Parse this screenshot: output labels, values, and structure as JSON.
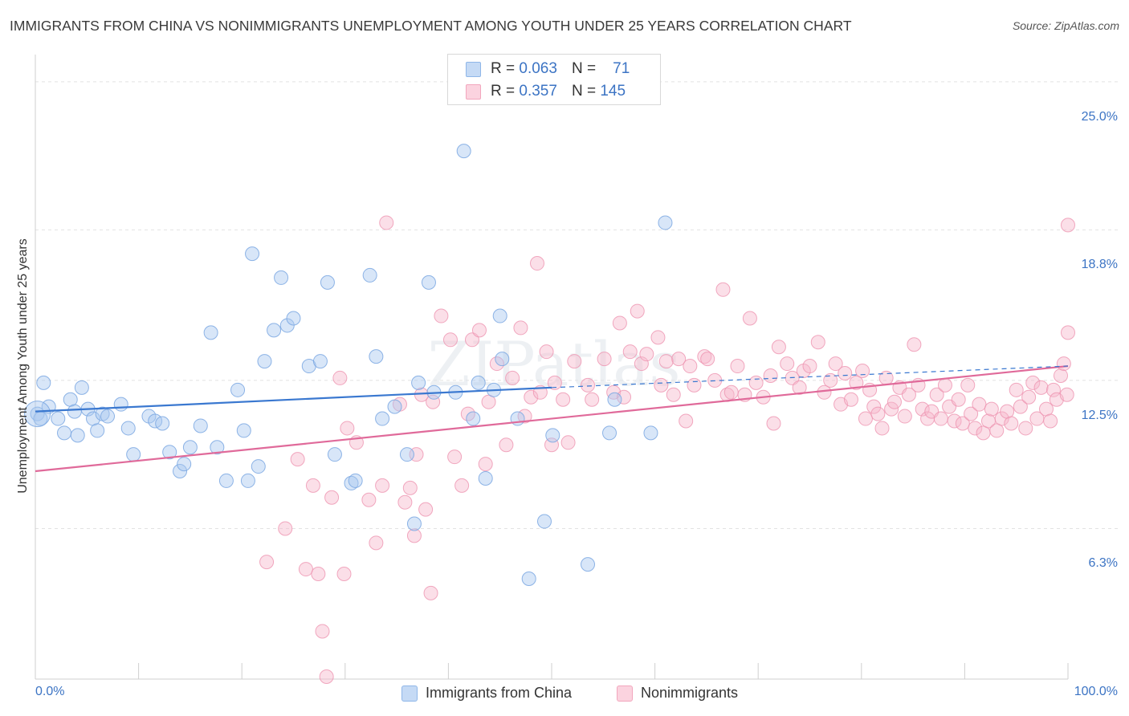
{
  "header": {
    "title": "IMMIGRANTS FROM CHINA VS NONIMMIGRANTS UNEMPLOYMENT AMONG YOUTH UNDER 25 YEARS CORRELATION CHART",
    "source": "Source: ZipAtlas.com"
  },
  "watermark": "ZIPatlas",
  "legend_top": {
    "rows": [
      {
        "r_label": "R =",
        "r_value": "0.063",
        "n_label": "N =",
        "n_value": "71"
      },
      {
        "r_label": "R =",
        "r_value": "0.357",
        "n_label": "N =",
        "n_value": "145"
      }
    ]
  },
  "chart_data": {
    "type": "scatter",
    "title": "IMMIGRANTS FROM CHINA VS NONIMMIGRANTS UNEMPLOYMENT AMONG YOUTH UNDER 25 YEARS CORRELATION CHART",
    "xlabel": "",
    "ylabel": "Unemployment Among Youth under 25 years",
    "xlim": [
      0,
      100
    ],
    "ylim": [
      0,
      25.8
    ],
    "x_tick_labels": [
      "0.0%",
      "100.0%"
    ],
    "y_ticks": [
      6.3,
      12.5,
      18.8,
      25.0
    ],
    "y_tick_labels": [
      "6.3%",
      "12.5%",
      "18.8%",
      "25.0%"
    ],
    "grid": true,
    "legend_position": "top-center",
    "series": [
      {
        "name": "Immigrants from China",
        "color": "#8fb6e8",
        "trend": {
          "x0": 0,
          "y0": 11.2,
          "x1": 50,
          "y1": 12.2,
          "dashed_to": 100,
          "y_end": 13.1,
          "color": "#3a78d0"
        },
        "points": [
          [
            0.2,
            11.1
          ],
          [
            0.5,
            10.9
          ],
          [
            0.8,
            12.4
          ],
          [
            1.3,
            11.4
          ],
          [
            2.2,
            10.9
          ],
          [
            2.8,
            10.3
          ],
          [
            3.4,
            11.7
          ],
          [
            3.8,
            11.2
          ],
          [
            4.1,
            10.2
          ],
          [
            4.5,
            12.2
          ],
          [
            5.1,
            11.3
          ],
          [
            5.6,
            10.9
          ],
          [
            6.0,
            10.4
          ],
          [
            6.5,
            11.1
          ],
          [
            7.0,
            11.0
          ],
          [
            8.3,
            11.5
          ],
          [
            9.0,
            10.5
          ],
          [
            9.5,
            9.4
          ],
          [
            11.0,
            11.0
          ],
          [
            11.6,
            10.8
          ],
          [
            12.3,
            10.7
          ],
          [
            13.0,
            9.5
          ],
          [
            14.0,
            8.7
          ],
          [
            14.4,
            9.0
          ],
          [
            15.0,
            9.7
          ],
          [
            16.0,
            10.6
          ],
          [
            17.0,
            14.5
          ],
          [
            17.6,
            9.7
          ],
          [
            18.5,
            8.3
          ],
          [
            19.6,
            12.1
          ],
          [
            20.2,
            10.4
          ],
          [
            20.6,
            8.3
          ],
          [
            21.0,
            17.8
          ],
          [
            21.6,
            8.9
          ],
          [
            22.2,
            13.3
          ],
          [
            23.1,
            14.6
          ],
          [
            23.8,
            16.8
          ],
          [
            24.4,
            14.8
          ],
          [
            25.0,
            15.1
          ],
          [
            26.5,
            13.1
          ],
          [
            27.6,
            13.3
          ],
          [
            28.3,
            16.6
          ],
          [
            29.0,
            9.4
          ],
          [
            30.6,
            8.2
          ],
          [
            31.0,
            8.3
          ],
          [
            32.4,
            16.9
          ],
          [
            33.0,
            13.5
          ],
          [
            33.6,
            10.9
          ],
          [
            34.8,
            11.4
          ],
          [
            36.0,
            9.4
          ],
          [
            36.7,
            6.5
          ],
          [
            37.1,
            12.4
          ],
          [
            38.1,
            16.6
          ],
          [
            38.6,
            12.0
          ],
          [
            40.7,
            12.0
          ],
          [
            41.5,
            22.1
          ],
          [
            42.4,
            10.9
          ],
          [
            42.9,
            12.4
          ],
          [
            43.6,
            8.4
          ],
          [
            44.4,
            12.1
          ],
          [
            45.0,
            15.2
          ],
          [
            45.2,
            13.4
          ],
          [
            46.7,
            10.9
          ],
          [
            47.8,
            4.2
          ],
          [
            49.3,
            6.6
          ],
          [
            50.1,
            10.2
          ],
          [
            53.5,
            4.8
          ],
          [
            55.6,
            10.3
          ],
          [
            56.1,
            11.7
          ],
          [
            59.6,
            10.3
          ],
          [
            61.0,
            19.1
          ]
        ]
      },
      {
        "name": "Nonimmigrants",
        "color": "#f5a8c1",
        "trend": {
          "x0": 0,
          "y0": 8.7,
          "x1": 100,
          "y1": 13.1,
          "color": "#e06a9a"
        },
        "points": [
          [
            22.4,
            4.9
          ],
          [
            24.2,
            6.3
          ],
          [
            25.4,
            9.2
          ],
          [
            26.2,
            4.6
          ],
          [
            26.9,
            8.1
          ],
          [
            27.4,
            4.4
          ],
          [
            27.8,
            2.0
          ],
          [
            28.2,
            0.1
          ],
          [
            28.7,
            7.6
          ],
          [
            29.5,
            12.6
          ],
          [
            29.9,
            4.4
          ],
          [
            30.2,
            10.5
          ],
          [
            31.1,
            9.9
          ],
          [
            32.3,
            7.5
          ],
          [
            33.0,
            5.7
          ],
          [
            33.6,
            8.1
          ],
          [
            34.0,
            19.1
          ],
          [
            35.3,
            11.5
          ],
          [
            35.8,
            7.4
          ],
          [
            36.3,
            8.0
          ],
          [
            36.7,
            6.0
          ],
          [
            36.9,
            9.4
          ],
          [
            37.4,
            11.9
          ],
          [
            37.8,
            7.1
          ],
          [
            38.3,
            3.6
          ],
          [
            38.5,
            11.6
          ],
          [
            39.3,
            15.2
          ],
          [
            40.2,
            14.2
          ],
          [
            40.6,
            9.3
          ],
          [
            41.3,
            8.1
          ],
          [
            41.9,
            11.1
          ],
          [
            42.3,
            14.2
          ],
          [
            43.0,
            14.6
          ],
          [
            43.6,
            9.0
          ],
          [
            43.9,
            11.6
          ],
          [
            44.7,
            13.2
          ],
          [
            45.6,
            9.8
          ],
          [
            46.2,
            12.6
          ],
          [
            47.0,
            14.7
          ],
          [
            47.4,
            11.0
          ],
          [
            48.0,
            11.8
          ],
          [
            48.6,
            17.4
          ],
          [
            48.9,
            12.0
          ],
          [
            49.5,
            13.7
          ],
          [
            50.0,
            9.8
          ],
          [
            50.3,
            12.4
          ],
          [
            51.1,
            11.7
          ],
          [
            51.6,
            9.9
          ],
          [
            52.2,
            13.3
          ],
          [
            53.5,
            12.3
          ],
          [
            53.9,
            11.7
          ],
          [
            55.1,
            13.4
          ],
          [
            56.0,
            12.0
          ],
          [
            56.6,
            14.9
          ],
          [
            57.0,
            11.8
          ],
          [
            57.6,
            13.7
          ],
          [
            58.3,
            15.4
          ],
          [
            58.7,
            13.2
          ],
          [
            59.2,
            13.6
          ],
          [
            60.3,
            14.3
          ],
          [
            60.6,
            12.3
          ],
          [
            61.1,
            13.3
          ],
          [
            61.8,
            11.9
          ],
          [
            62.3,
            13.4
          ],
          [
            63.0,
            10.8
          ],
          [
            63.4,
            13.1
          ],
          [
            63.8,
            12.3
          ],
          [
            64.8,
            13.5
          ],
          [
            65.1,
            13.4
          ],
          [
            65.8,
            12.5
          ],
          [
            66.6,
            16.3
          ],
          [
            67.0,
            11.9
          ],
          [
            67.4,
            12.0
          ],
          [
            68.0,
            13.1
          ],
          [
            68.7,
            11.9
          ],
          [
            69.2,
            15.1
          ],
          [
            69.8,
            12.4
          ],
          [
            70.5,
            11.8
          ],
          [
            71.2,
            12.7
          ],
          [
            71.5,
            10.7
          ],
          [
            72.0,
            13.9
          ],
          [
            72.8,
            13.2
          ],
          [
            73.3,
            12.6
          ],
          [
            74.0,
            12.2
          ],
          [
            74.4,
            12.9
          ],
          [
            75.0,
            13.1
          ],
          [
            75.8,
            14.1
          ],
          [
            76.4,
            12.0
          ],
          [
            77.0,
            12.5
          ],
          [
            77.5,
            13.2
          ],
          [
            78.0,
            11.5
          ],
          [
            78.4,
            12.8
          ],
          [
            79.0,
            11.7
          ],
          [
            79.5,
            12.4
          ],
          [
            80.1,
            12.9
          ],
          [
            80.4,
            10.9
          ],
          [
            80.8,
            12.1
          ],
          [
            81.2,
            11.4
          ],
          [
            81.6,
            11.1
          ],
          [
            82.0,
            10.5
          ],
          [
            82.4,
            12.6
          ],
          [
            82.9,
            11.3
          ],
          [
            83.2,
            11.6
          ],
          [
            83.7,
            12.2
          ],
          [
            84.2,
            11.0
          ],
          [
            84.6,
            11.9
          ],
          [
            85.1,
            14.0
          ],
          [
            85.5,
            12.3
          ],
          [
            85.9,
            11.3
          ],
          [
            86.4,
            10.9
          ],
          [
            86.8,
            11.2
          ],
          [
            87.3,
            11.9
          ],
          [
            87.7,
            10.9
          ],
          [
            88.1,
            12.3
          ],
          [
            88.5,
            11.4
          ],
          [
            89.0,
            10.8
          ],
          [
            89.4,
            11.7
          ],
          [
            89.8,
            10.7
          ],
          [
            90.3,
            12.3
          ],
          [
            90.6,
            11.1
          ],
          [
            91.0,
            10.5
          ],
          [
            91.4,
            11.5
          ],
          [
            91.8,
            10.3
          ],
          [
            92.3,
            10.8
          ],
          [
            92.6,
            11.3
          ],
          [
            93.1,
            10.4
          ],
          [
            93.6,
            10.9
          ],
          [
            94.1,
            11.2
          ],
          [
            94.5,
            10.7
          ],
          [
            95.0,
            12.1
          ],
          [
            95.4,
            11.4
          ],
          [
            95.9,
            10.5
          ],
          [
            96.2,
            11.8
          ],
          [
            96.6,
            12.4
          ],
          [
            97.0,
            10.9
          ],
          [
            97.4,
            12.2
          ],
          [
            97.9,
            11.3
          ],
          [
            98.3,
            10.8
          ],
          [
            98.6,
            12.1
          ],
          [
            98.9,
            11.7
          ],
          [
            99.3,
            12.7
          ],
          [
            99.6,
            13.2
          ],
          [
            99.9,
            11.9
          ],
          [
            100.0,
            14.5
          ],
          [
            100.0,
            19.0
          ]
        ]
      }
    ]
  },
  "bottom_legend": {
    "items": [
      {
        "label": "Immigrants from China",
        "fill": "#c5daf5",
        "stroke": "#8fb6e8"
      },
      {
        "label": "Nonimmigrants",
        "fill": "#fbd3df",
        "stroke": "#f2a6bd"
      }
    ]
  }
}
